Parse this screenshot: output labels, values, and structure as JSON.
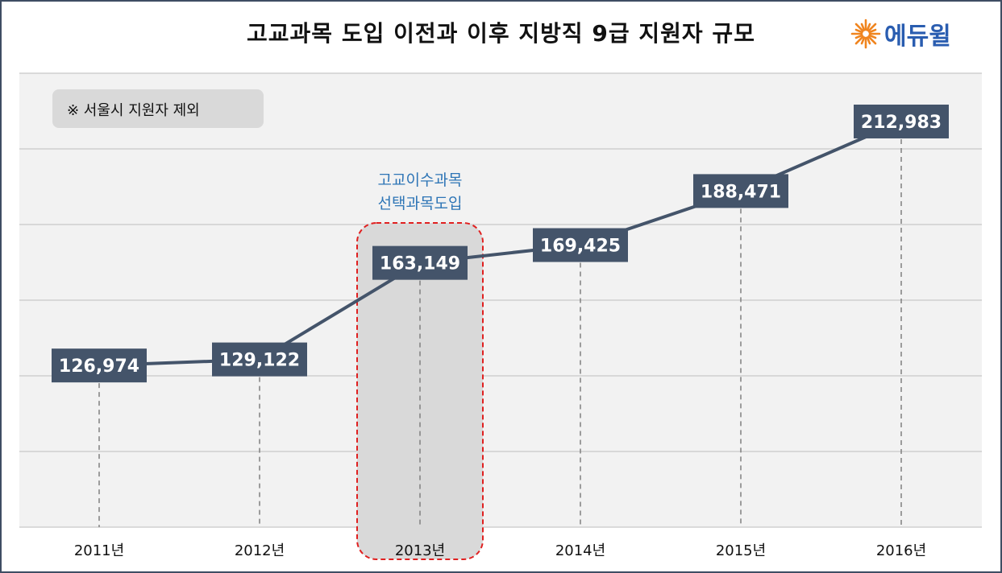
{
  "title": "고교과목 도입 이전과 이후 지방직 9급 지원자 규모",
  "logo": {
    "text": "에듀윌",
    "icon": "sunburst-icon",
    "icon_color": "#f0851f",
    "text_color": "#2a5db0"
  },
  "note": "※ 서울시 지원자 제외",
  "highlight": {
    "label_line1": "고교이수과목",
    "label_line2": "선택과목도입",
    "category": "2013년",
    "border_color": "#e02020",
    "fill_color": "#d9d9d9",
    "label_color": "#2e75b6"
  },
  "chart_data": {
    "type": "line",
    "title": "고교과목 도입 이전과 이후 지방직 9급 지원자 규모",
    "categories": [
      "2011년",
      "2012년",
      "2013년",
      "2014년",
      "2015년",
      "2016년"
    ],
    "series": [
      {
        "values": [
          126974,
          129122,
          163149,
          169425,
          188471,
          212983
        ]
      }
    ],
    "data_labels": [
      "126,974",
      "129,122",
      "163,149",
      "169,425",
      "188,471",
      "212,983"
    ],
    "xlabel": "",
    "ylabel": "",
    "ylim": [
      70000,
      230000
    ],
    "grid": true,
    "line_color": "#44546a",
    "label_box_color": "#44546a",
    "label_text_color": "#ffffff"
  }
}
